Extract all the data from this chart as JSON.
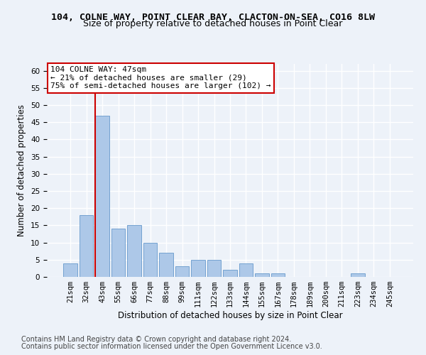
{
  "title1": "104, COLNE WAY, POINT CLEAR BAY, CLACTON-ON-SEA, CO16 8LW",
  "title2": "Size of property relative to detached houses in Point Clear",
  "xlabel": "Distribution of detached houses by size in Point Clear",
  "ylabel": "Number of detached properties",
  "categories": [
    "21sqm",
    "32sqm",
    "43sqm",
    "55sqm",
    "66sqm",
    "77sqm",
    "88sqm",
    "99sqm",
    "111sqm",
    "122sqm",
    "133sqm",
    "144sqm",
    "155sqm",
    "167sqm",
    "178sqm",
    "189sqm",
    "200sqm",
    "211sqm",
    "223sqm",
    "234sqm",
    "245sqm"
  ],
  "values": [
    4,
    18,
    47,
    14,
    15,
    10,
    7,
    3,
    5,
    5,
    2,
    4,
    1,
    1,
    0,
    0,
    0,
    0,
    1,
    0,
    0
  ],
  "bar_color": "#adc8e8",
  "bar_edge_color": "#6699cc",
  "red_line_color": "#cc0000",
  "red_line_x": 1.575,
  "annotation_text": "104 COLNE WAY: 47sqm\n← 21% of detached houses are smaller (29)\n75% of semi-detached houses are larger (102) →",
  "annotation_facecolor": "#ffffff",
  "annotation_edgecolor": "#cc0000",
  "ylim": [
    0,
    62
  ],
  "yticks": [
    0,
    5,
    10,
    15,
    20,
    25,
    30,
    35,
    40,
    45,
    50,
    55,
    60
  ],
  "footer1": "Contains HM Land Registry data © Crown copyright and database right 2024.",
  "footer2": "Contains public sector information licensed under the Open Government Licence v3.0.",
  "bg_color": "#edf2f9",
  "grid_color": "#ffffff",
  "title1_fontsize": 9.5,
  "title2_fontsize": 9,
  "xlabel_fontsize": 8.5,
  "ylabel_fontsize": 8.5,
  "tick_fontsize": 7.5,
  "annot_fontsize": 8,
  "footer_fontsize": 7
}
